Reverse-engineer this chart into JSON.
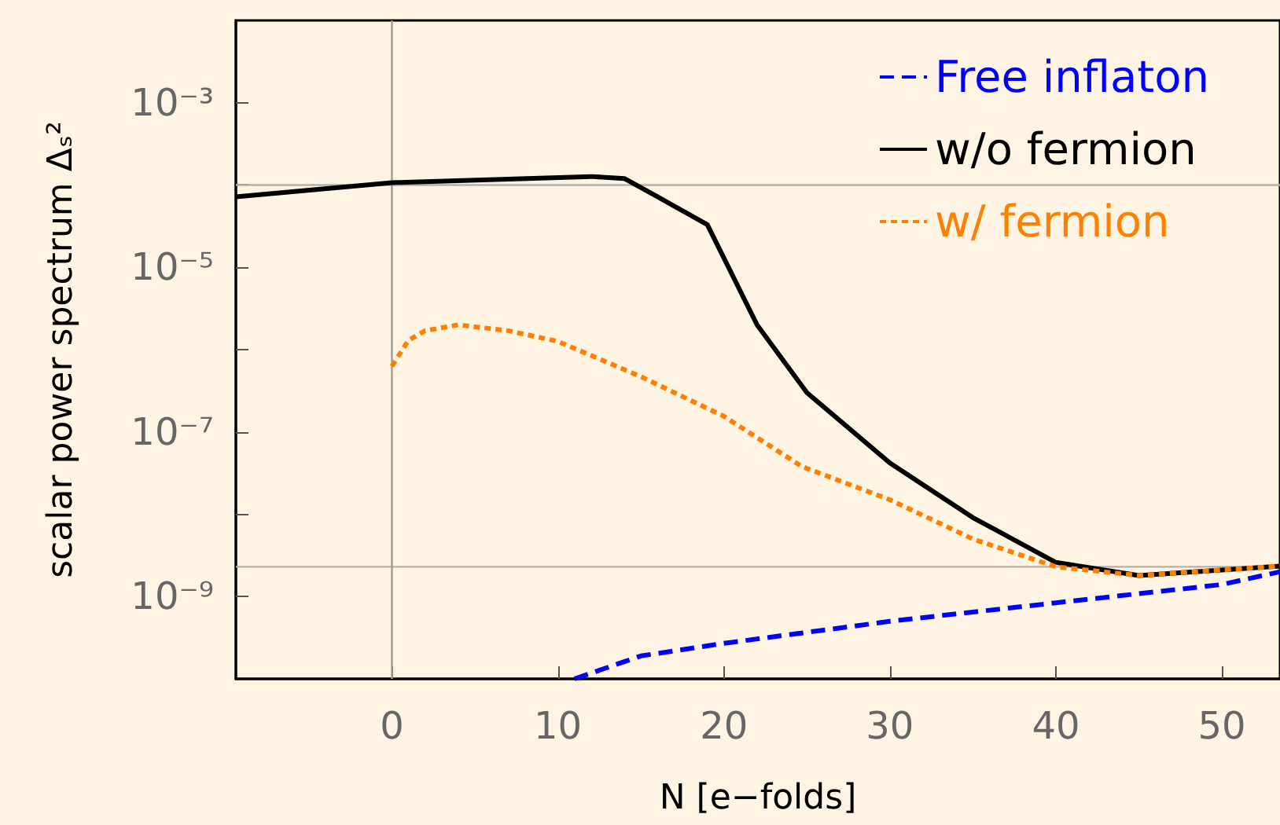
{
  "chart_data": {
    "type": "line",
    "xlabel": "N [e−folds]",
    "ylabel": "scalar power spectrum Δₛ²",
    "log": "y",
    "xlim": [
      -9.4,
      53.5
    ],
    "xticks": [
      0,
      10,
      20,
      30,
      40,
      50
    ],
    "ylim": [
      1e-10,
      0.01
    ],
    "yticks": [
      {
        "value": 1e-09,
        "label": "10⁻⁹"
      },
      {
        "value": 1e-08,
        "label": null
      },
      {
        "value": 1e-07,
        "label": "10⁻⁷"
      },
      {
        "value": 1e-06,
        "label": null
      },
      {
        "value": 1e-05,
        "label": "10⁻⁵"
      },
      {
        "value": 0.0001,
        "label": null
      },
      {
        "value": 0.001,
        "label": "10⁻³"
      }
    ],
    "grid": false,
    "legend": "top right",
    "marker": "none",
    "ref_lines": [
      {
        "axis": "y",
        "value": 0.0001,
        "color": "#b5b0a8"
      },
      {
        "axis": "y",
        "value": 2.3e-09,
        "color": "#b5b0a8"
      },
      {
        "axis": "x",
        "value": 0,
        "color": "#a09c96"
      }
    ],
    "series": [
      {
        "name": "Free inflaton",
        "color": "#0000ff",
        "line_style": "dashed",
        "x": [
          11,
          15,
          20,
          30,
          40,
          50,
          53.5
        ],
        "values": [
          1e-10,
          1.9e-10,
          2.7e-10,
          5e-10,
          8.4e-10,
          1.4e-09,
          2e-09
        ]
      },
      {
        "name": "w/o fermion",
        "color": "#000000",
        "line_style": "solid",
        "x": [
          -9.4,
          0,
          12,
          14,
          16,
          19,
          22,
          25,
          30,
          35,
          40,
          45,
          53.5
        ],
        "values": [
          7.2e-05,
          0.000107,
          0.000127,
          0.00012,
          7.2e-05,
          3.3e-05,
          2e-06,
          3e-07,
          4.2e-08,
          9.1e-09,
          2.6e-09,
          1.8e-09,
          2.35e-09
        ]
      },
      {
        "name": "w/ fermion",
        "color": "#ff8000",
        "line_style": "dotted",
        "x": [
          0,
          1,
          2,
          4,
          7,
          10,
          15,
          20,
          24.7,
          30,
          35,
          40,
          45,
          53.5
        ],
        "values": [
          6.3e-07,
          1.3e-06,
          1.7e-06,
          2e-06,
          1.7e-06,
          1.26e-06,
          4.7e-07,
          1.55e-07,
          3.8e-08,
          1.5e-08,
          5e-09,
          2.3e-09,
          1.8e-09,
          2.35e-09
        ]
      }
    ]
  }
}
